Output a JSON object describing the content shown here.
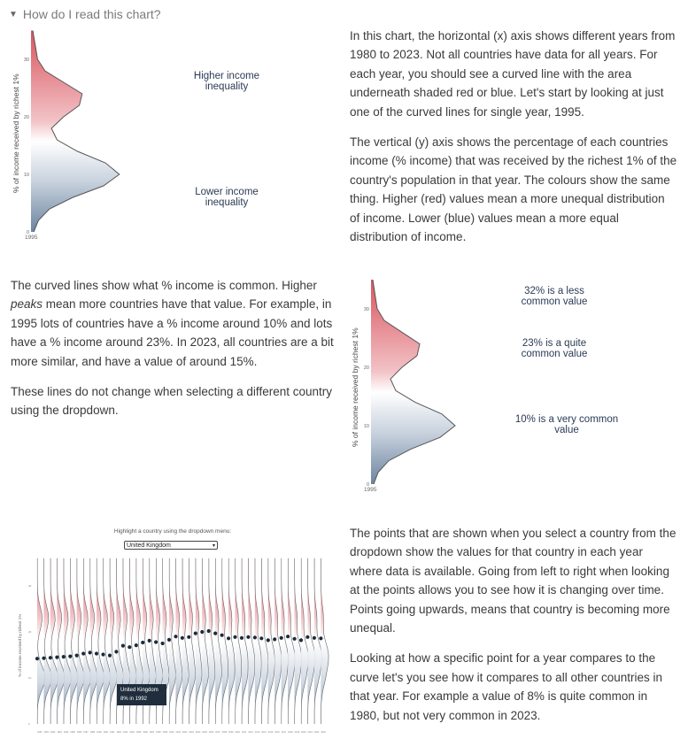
{
  "summary": {
    "label": "How do I read this chart?"
  },
  "panel1": {
    "ylabel": "% of income received by richest 1%",
    "ticks": [
      "0",
      "10",
      "20",
      "30"
    ],
    "year": "1995",
    "ann_high": "Higher income inequality",
    "ann_low": "Lower income inequality"
  },
  "panel2": {
    "ylabel": "% of income received by richest 1%",
    "ticks": [
      "0",
      "10",
      "20",
      "30"
    ],
    "year": "1995",
    "ann_32": "32% is a less common value",
    "ann_23": "23% is a quite common value",
    "ann_10": "10% is a very common value"
  },
  "panel3": {
    "dropdown_label": "Highlight a country using the dropdown menu:",
    "dropdown_value": "United Kingdom",
    "ylabel": "% of income received by richest 1%",
    "tooltip_line1": "United Kingdom",
    "tooltip_line2": "8% in 1992"
  },
  "text": {
    "p1": "In this chart, the horizontal (x) axis shows different years from 1980 to 2023. Not all countries have data for all years. For each year, you should see a curved line with the area underneath shaded red or blue. Let's start by looking at just one of the curved lines for single year, 1995.",
    "p2": "The vertical (y) axis shows the percentage of each countries income (% income) that was received by the richest 1% of the country's population in that year. The colours show the same thing. Higher (red) values mean a more unequal distribution of income. Lower (blue) values mean a more equal distribution of income.",
    "p3_a": "The curved lines show what % income is common. Higher ",
    "p3_em": "peaks",
    "p3_b": " mean more countries have that value. For example, in 1995 lots of countries have a % income around 10% and lots have a % income around 23%. In 2023, all countries are a bit more similar, and have a value of around 15%.",
    "p4": "These lines do not change when selecting a different country using the dropdown.",
    "p5": "The points that are shown when you select a country from the dropdown show the values for that country in each year where data is available. Going from left to right when looking at the points allows you to see how it is changing over time. Points going upwards, means that country is becoming more unequal.",
    "p6": "Looking at how a specific point for a year compares to the curve let's you see how it compares to all other countries in that year. For example a value of 8% is quite common in 1980, but not very common in 2023."
  },
  "colors": {
    "high": "#d9545f",
    "low": "#5d7896",
    "point": "#1c2b3a"
  },
  "chart_data": [
    {
      "type": "area",
      "title": "",
      "ylabel": "% of income received by richest 1%",
      "year": "1995",
      "ylim": [
        0,
        35
      ],
      "y": [
        0,
        2,
        4,
        6,
        8,
        10,
        12,
        14,
        16,
        18,
        20,
        22,
        24,
        26,
        28,
        30,
        32,
        34,
        35
      ],
      "density": [
        0.03,
        0.08,
        0.2,
        0.45,
        0.78,
        0.95,
        0.8,
        0.5,
        0.28,
        0.22,
        0.35,
        0.52,
        0.55,
        0.35,
        0.15,
        0.07,
        0.05,
        0.03,
        0.02
      ]
    },
    {
      "type": "scatter",
      "title": "",
      "series_label": "United Kingdom",
      "ylabel": "% of income received by richest 1%",
      "x": [
        1980,
        1981,
        1982,
        1983,
        1984,
        1985,
        1986,
        1987,
        1988,
        1989,
        1990,
        1991,
        1992,
        1993,
        1994,
        1995,
        1996,
        1997,
        1998,
        1999,
        2000,
        2001,
        2002,
        2003,
        2004,
        2005,
        2006,
        2007,
        2008,
        2009,
        2010,
        2011,
        2012,
        2013,
        2014,
        2015,
        2016,
        2017,
        2018,
        2019,
        2020,
        2021,
        2022,
        2023
      ],
      "y": [
        6.5,
        6.6,
        6.7,
        6.8,
        6.9,
        7.0,
        7.2,
        7.6,
        7.8,
        7.6,
        7.4,
        7.2,
        8.0,
        9.3,
        9.0,
        9.4,
        10.0,
        10.4,
        10.1,
        9.8,
        10.6,
        11.3,
        11.0,
        11.2,
        12.0,
        12.3,
        12.5,
        12.0,
        11.6,
        10.9,
        11.2,
        11.0,
        11.2,
        11.1,
        10.9,
        10.5,
        10.7,
        11.0,
        11.3,
        10.8,
        10.5,
        11.2,
        11.0,
        10.9
      ]
    }
  ]
}
